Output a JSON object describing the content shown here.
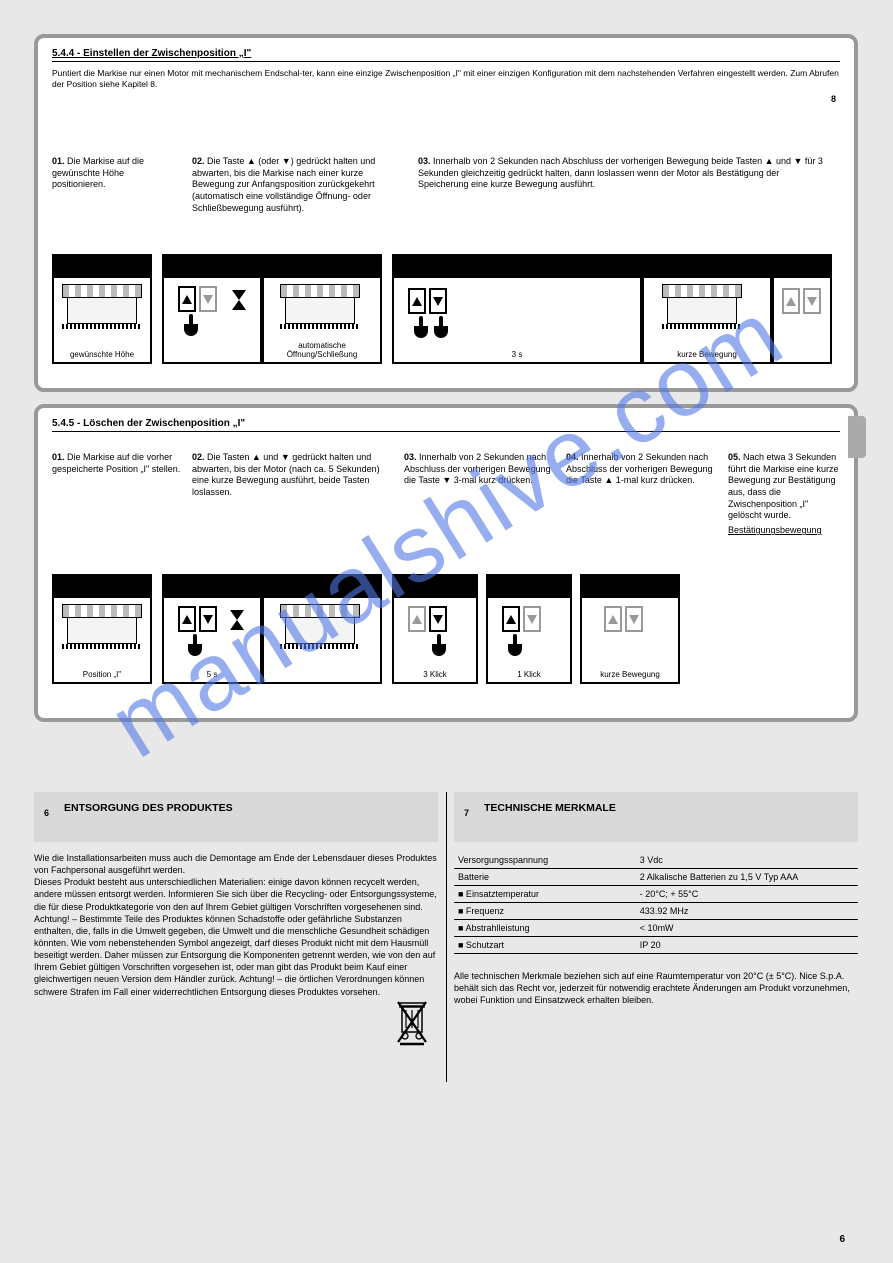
{
  "watermark": "manualshive.com",
  "panel1": {
    "title": "5.4.4 - Einstellen der Zwischenposition „I\"",
    "subtitle": "Puntiert die Markise nur einen Motor mit mechanischem Endschal-ter, kann eine einzige Zwischenposition „I\" mit einer einzigen Konfiguration mit dem nachstehenden Verfahren eingestellt werden. Zum Abrufen der Position siehe Kapitel 8.",
    "page_ref": "8",
    "steps": {
      "s01": {
        "n": "01.",
        "text": "Die Markise auf die gewünschte Höhe positionieren."
      },
      "s02": {
        "n": "02.",
        "text": "Die Taste ▲ (oder ▼) gedrückt halten und abwarten, bis die Markise nach einer kurze Bewegung zur Anfangsposition zurückgekehrt (automatisch eine vollständige Öffnung- oder Schließbewegung ausführt)."
      },
      "s03": {
        "n": "03.",
        "text": "Innerhalb von 2 Sekunden nach Abschluss der vorherigen Bewegung beide Tasten ▲ und ▼ für 3 Sekunden gleichzeitig gedrückt halten, dann loslassen wenn der Motor als Bestätigung der Speicherung eine kurze Bewegung ausführt."
      }
    },
    "diagram_captions": {
      "c1": "gewünschte Höhe",
      "c2": "automatische Öffnung/Schließung",
      "c3": "3 s",
      "c4": "kurze Bewegung"
    }
  },
  "panel2": {
    "title": "5.4.5 - Löschen der Zwischenposition „I\"",
    "steps": {
      "s01": {
        "n": "01.",
        "text": "Die Markise auf die vorher gespeicherte Position „I\" stellen."
      },
      "s02": {
        "n": "02.",
        "text": "Die Tasten ▲ und ▼ gedrückt halten und abwarten, bis der Motor (nach ca. 5 Sekunden) eine kurze Bewegung ausführt, beide Tasten loslassen."
      },
      "s03": {
        "n": "03.",
        "text": "Innerhalb von 2 Sekunden nach Abschluss der vorherigen Bewegung die Taste ▼ 3-mal kurz drücken."
      },
      "s04": {
        "n": "04.",
        "text": "Innerhalb von 2 Sekunden nach Abschluss der vorherigen Bewegung die Taste ▲ 1-mal kurz drücken."
      },
      "s05": {
        "n": "05.",
        "text": "Nach etwa 3 Sekunden führt die Markise eine kurze Bewegung zur Bestätigung aus, dass die Zwischenposition „I\" gelöscht wurde.",
        "underline": "Bestätigungsbewegung"
      }
    },
    "diagram_captions": {
      "c1": "Position „I\"",
      "c2": "5 s",
      "c3": "3 Klick",
      "c4": "1 Klick",
      "c5": "kurze Bewegung"
    }
  },
  "section_left": {
    "num": "6",
    "title": "ENTSORGUNG DES PRODUKTES",
    "body": "Wie die Installationsarbeiten muss auch die Demontage am Ende der Lebensdauer dieses Produktes von Fachpersonal ausgeführt werden.\nDieses Produkt besteht aus unterschiedlichen Materialien: einige davon können recycelt werden, andere müssen entsorgt werden. Informieren Sie sich über die Recycling- oder Entsorgungssysteme, die für diese Produktkategorie von den auf Ihrem Gebiet gültigen Vorschriften vorgesehenen sind. Achtung! – Bestimmte Teile des Produktes können Schadstoffe oder gefährliche Substanzen enthalten, die, falls in die Umwelt gegeben, die Umwelt und die menschliche Gesundheit schädigen könnten. Wie vom nebenstehenden Symbol angezeigt, darf dieses Produkt nicht mit dem Hausmüll beseitigt werden. Daher müssen zur Entsorgung die Komponenten getrennt werden, wie von den auf Ihrem Gebiet gültigen Vorschriften vorgesehen ist, oder man gibt das Produkt beim Kauf einer gleichwertigen neuen Version dem Händler zurück. Achtung! – die örtlichen Verordnungen können schwere Strafen im Fall einer widerrechtlichen Entsorgung dieses Produktes vorsehen."
  },
  "section_right": {
    "num": "7",
    "title": "TECHNISCHE MERKMALE",
    "rows": [
      [
        "Versorgungsspannung",
        "3 Vdc"
      ],
      [
        "Batterie",
        "2 Alkalische Batterien zu 1,5 V Typ AAA"
      ],
      [
        "■ Einsatztemperatur",
        "- 20°C; + 55°C"
      ],
      [
        "■ Frequenz",
        "433.92 MHz"
      ],
      [
        "■ Abstrahlleistung",
        "< 10mW"
      ],
      [
        "■ Schutzart",
        "IP 20"
      ]
    ],
    "note": "Alle technischen Merkmale beziehen sich auf eine Raumtemperatur von 20°C (± 5°C). Nice S.p.A. behält sich das Recht vor, jederzeit für notwendig erachtete Änderungen am Produkt vorzunehmen, wobei Funktion und Einsatzweck erhalten bleiben."
  },
  "page_number": "6"
}
